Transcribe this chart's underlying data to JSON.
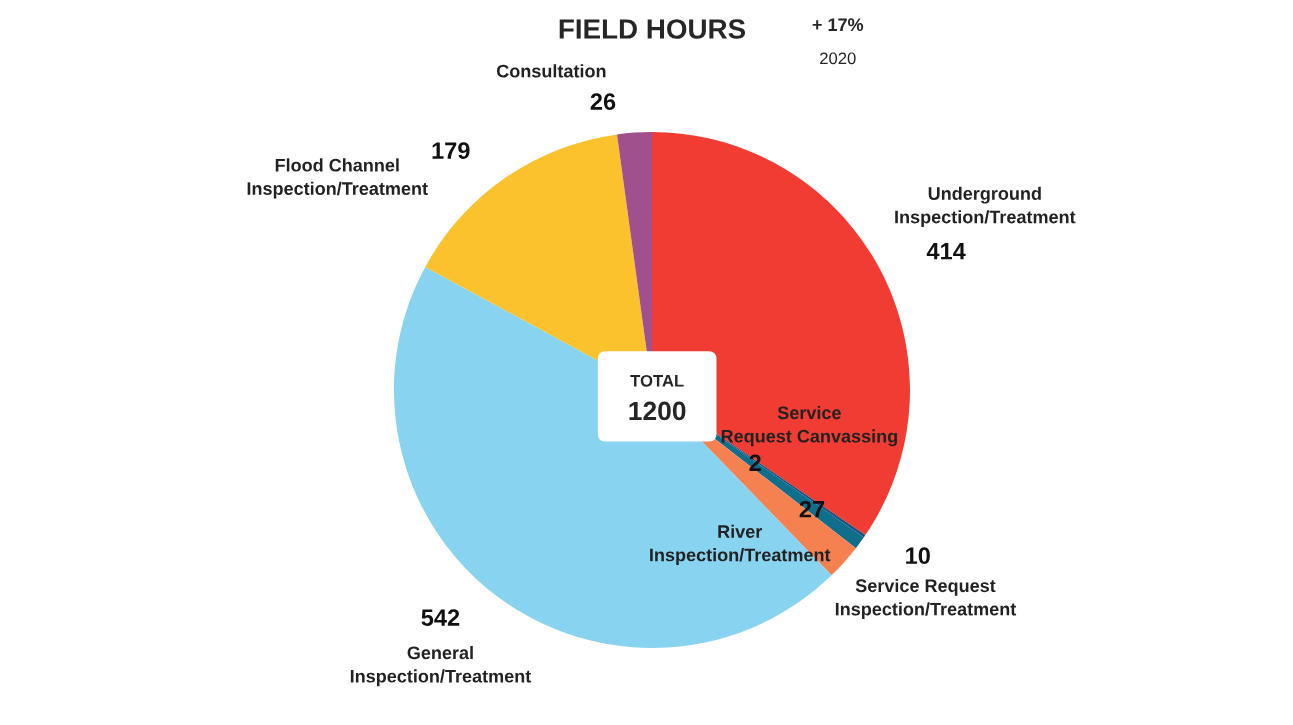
{
  "chart_data": {
    "type": "pie",
    "title": "FIELD HOURS",
    "categories": [
      "Underground\nInspection/Treatment",
      "Service\nRequest Canvassing",
      "Service Request\nInspection/Treatment",
      "River\nInspection/Treatment",
      "General\nInspection/Treatment",
      "Flood Channel\nInspection/Treatment",
      "Consultation"
    ],
    "values": [
      414,
      2,
      10,
      27,
      542,
      179,
      26
    ],
    "colors": [
      "#f03c32",
      "#1f4e79",
      "#0f6e8c",
      "#f58150",
      "#87d3f0",
      "#fcc22d",
      "#a0508c"
    ],
    "data_labels": true,
    "annotations": [
      "+ 17%",
      "2020",
      "TOTAL",
      "1200"
    ]
  }
}
